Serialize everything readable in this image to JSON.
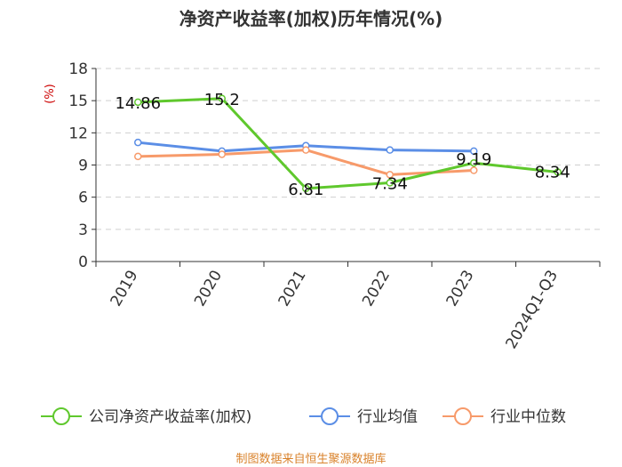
{
  "chart_data": {
    "type": "line",
    "title": "净资产收益率(加权)历年情况(%)",
    "ylabel": "(%)",
    "xlabel": "",
    "categories": [
      "2019",
      "2020",
      "2021",
      "2022",
      "2023",
      "2024Q1-Q3"
    ],
    "ylim": [
      0,
      18
    ],
    "yticks": [
      0,
      3,
      6,
      9,
      12,
      15,
      18
    ],
    "grid": true,
    "legend_position": "bottom",
    "series": [
      {
        "name": "公司净资产收益率(加权)",
        "color": "#5fc82d",
        "values": [
          14.86,
          15.2,
          6.81,
          7.34,
          9.19,
          8.34
        ],
        "labels": [
          "14.86",
          "15.2",
          "6.81",
          "7.34",
          "9.19",
          "8.34"
        ]
      },
      {
        "name": "行业均值",
        "color": "#5b8ee6",
        "values": [
          11.1,
          10.3,
          10.8,
          10.4,
          10.3,
          null
        ]
      },
      {
        "name": "行业中位数",
        "color": "#f79a6a",
        "values": [
          9.8,
          10.0,
          10.4,
          8.1,
          8.5,
          null
        ]
      }
    ]
  },
  "source": "制图数据来自恒生聚源数据库"
}
